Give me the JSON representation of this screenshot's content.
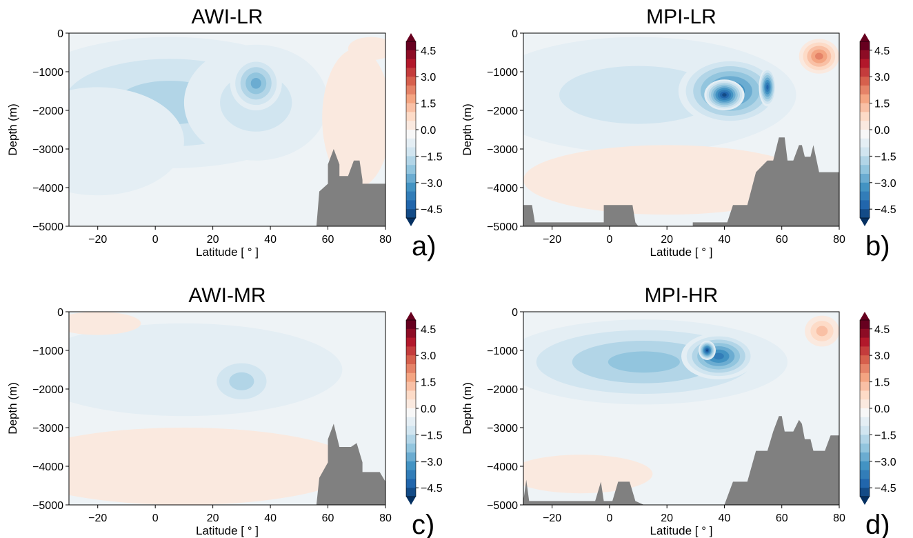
{
  "chart_data": [
    {
      "type": "heatmap",
      "title": "AWI-LR",
      "panel_label": "a)",
      "xlabel": "Latitude [ ° ]",
      "ylabel": "Depth (m)",
      "xlim": [
        -30,
        80
      ],
      "ylim": [
        -5000,
        0
      ],
      "xticks": [
        "−20",
        "0",
        "20",
        "40",
        "60",
        "80"
      ],
      "yticks": [
        "0",
        "−1000",
        "−2000",
        "−3000",
        "−4000",
        "−5000"
      ],
      "colorbar": {
        "ticks": [
          "4.5",
          "3.0",
          "1.5",
          "0.0",
          "−1.5",
          "−3.0",
          "−4.5"
        ],
        "range": [
          -5,
          5
        ],
        "cmap": "RdBu_r"
      },
      "anomalies": [
        {
          "lat": 40,
          "depth": 0,
          "val": 0,
          "rx": 0,
          "rd": 0
        }
      ],
      "field": [
        {
          "lat": 5,
          "depth": -1800,
          "val": -1.6,
          "rx": 55,
          "rd": 1700
        },
        {
          "lat": 35,
          "depth": -1800,
          "val": -1.2,
          "rx": 25,
          "rd": 1500
        },
        {
          "lat": 35,
          "depth": -1300,
          "val": -2.6,
          "rx": 9,
          "rd": 700
        },
        {
          "lat": -20,
          "depth": -2800,
          "val": -0.6,
          "rx": 30,
          "rd": 1400
        },
        {
          "lat": 75,
          "depth": -400,
          "val": 0.5,
          "rx": 8,
          "rd": 300
        },
        {
          "lat": 70,
          "depth": -2200,
          "val": 0.2,
          "rx": 12,
          "rd": 1800
        }
      ],
      "bathymetry": [
        [
          56,
          -5000
        ],
        [
          57,
          -4100
        ],
        [
          60,
          -3900
        ],
        [
          60,
          -3400
        ],
        [
          62,
          -3000
        ],
        [
          64,
          -3400
        ],
        [
          64,
          -3700
        ],
        [
          67,
          -3700
        ],
        [
          69,
          -3300
        ],
        [
          71,
          -3300
        ],
        [
          72,
          -3800
        ],
        [
          72,
          -3900
        ],
        [
          80,
          -3900
        ],
        [
          80,
          -5000
        ]
      ]
    },
    {
      "type": "heatmap",
      "title": "MPI-LR",
      "panel_label": "b)",
      "xlabel": "Latitude [ ° ]",
      "ylabel": "Depth (m)",
      "xlim": [
        -30,
        80
      ],
      "ylim": [
        -5000,
        0
      ],
      "xticks": [
        "−20",
        "0",
        "20",
        "40",
        "60",
        "80"
      ],
      "yticks": [
        "0",
        "−1000",
        "−2000",
        "−3000",
        "−4000",
        "−5000"
      ],
      "colorbar": {
        "ticks": [
          "4.5",
          "3.0",
          "1.5",
          "0.0",
          "−1.5",
          "−3.0",
          "−4.5"
        ],
        "range": [
          -5,
          5
        ],
        "cmap": "RdBu_r"
      },
      "field": [
        {
          "lat": 10,
          "depth": -1600,
          "val": -1.2,
          "rx": 55,
          "rd": 1500
        },
        {
          "lat": 42,
          "depth": -1500,
          "val": -3.3,
          "rx": 18,
          "rd": 900
        },
        {
          "lat": 40,
          "depth": -1600,
          "val": -4.6,
          "rx": 7,
          "rd": 400
        },
        {
          "lat": 55,
          "depth": -1400,
          "val": -4.2,
          "rx": 3,
          "rd": 500
        },
        {
          "lat": 73,
          "depth": -600,
          "val": 2.4,
          "rx": 7,
          "rd": 450
        },
        {
          "lat": 20,
          "depth": -3800,
          "val": 0.4,
          "rx": 50,
          "rd": 900
        }
      ],
      "bathymetry": [
        [
          -30,
          -5000
        ],
        [
          -30,
          -4450
        ],
        [
          -27,
          -4450
        ],
        [
          -26,
          -4900
        ],
        [
          -2,
          -4900
        ],
        [
          -2,
          -4450
        ],
        [
          8,
          -4450
        ],
        [
          9,
          -4900
        ],
        [
          10,
          -5000
        ]
      ],
      "bathymetry2": [
        [
          29,
          -5000
        ],
        [
          29,
          -4900
        ],
        [
          41,
          -4900
        ],
        [
          43,
          -4450
        ],
        [
          48,
          -4450
        ],
        [
          51,
          -3600
        ],
        [
          55,
          -3300
        ],
        [
          57,
          -3300
        ],
        [
          59,
          -2700
        ],
        [
          61,
          -2700
        ],
        [
          62,
          -3300
        ],
        [
          64,
          -3300
        ],
        [
          66,
          -2900
        ],
        [
          67,
          -2900
        ],
        [
          68,
          -3200
        ],
        [
          70,
          -3200
        ],
        [
          71,
          -2900
        ],
        [
          73,
          -3600
        ],
        [
          80,
          -3600
        ],
        [
          80,
          -5000
        ]
      ]
    },
    {
      "type": "heatmap",
      "title": "AWI-MR",
      "panel_label": "c)",
      "xlabel": "Latitude [ ° ]",
      "ylabel": "Depth (m)",
      "xlim": [
        -30,
        80
      ],
      "ylim": [
        -5000,
        0
      ],
      "xticks": [
        "−20",
        "0",
        "20",
        "40",
        "60",
        "80"
      ],
      "yticks": [
        "0",
        "−1000",
        "−2000",
        "−3000",
        "−4000",
        "−5000"
      ],
      "colorbar": {
        "ticks": [
          "4.5",
          "3.0",
          "1.5",
          "0.0",
          "−1.5",
          "−3.0",
          "−4.5"
        ],
        "range": [
          -5,
          5
        ],
        "cmap": "RdBu_r"
      },
      "field": [
        {
          "lat": 10,
          "depth": -1500,
          "val": -0.6,
          "rx": 55,
          "rd": 1200
        },
        {
          "lat": 30,
          "depth": -1800,
          "val": -1.3,
          "rx": 13,
          "rd": 700
        },
        {
          "lat": 10,
          "depth": -4000,
          "val": 0.3,
          "rx": 60,
          "rd": 1000
        },
        {
          "lat": -20,
          "depth": -300,
          "val": 0.3,
          "rx": 15,
          "rd": 300
        }
      ],
      "bathymetry": [
        [
          56,
          -5000
        ],
        [
          57,
          -4300
        ],
        [
          60,
          -3900
        ],
        [
          60,
          -3300
        ],
        [
          62,
          -2900
        ],
        [
          64,
          -3500
        ],
        [
          68,
          -3500
        ],
        [
          70,
          -3400
        ],
        [
          72,
          -3900
        ],
        [
          72,
          -4150
        ],
        [
          78,
          -4150
        ],
        [
          80,
          -4400
        ],
        [
          80,
          -5000
        ]
      ]
    },
    {
      "type": "heatmap",
      "title": "MPI-HR",
      "panel_label": "d)",
      "xlabel": "Latitude [ ° ]",
      "ylabel": "Depth (m)",
      "xlim": [
        -30,
        80
      ],
      "ylim": [
        -5000,
        0
      ],
      "xticks": [
        "−20",
        "0",
        "20",
        "40",
        "60",
        "80"
      ],
      "yticks": [
        "0",
        "−1000",
        "−2000",
        "−3000",
        "−4000",
        "−5000"
      ],
      "colorbar": {
        "ticks": [
          "4.5",
          "3.0",
          "1.5",
          "0.0",
          "−1.5",
          "−3.0",
          "−4.5"
        ],
        "range": [
          -5,
          5
        ],
        "cmap": "RdBu_r"
      },
      "field": [
        {
          "lat": 12,
          "depth": -1300,
          "val": -1.8,
          "rx": 50,
          "rd": 1100
        },
        {
          "lat": 38,
          "depth": -1150,
          "val": -3.4,
          "rx": 13,
          "rd": 600
        },
        {
          "lat": 34,
          "depth": -1000,
          "val": -4.5,
          "rx": 3,
          "rd": 250
        },
        {
          "lat": 74,
          "depth": -500,
          "val": 1.5,
          "rx": 6,
          "rd": 400
        },
        {
          "lat": -10,
          "depth": -4200,
          "val": 0.4,
          "rx": 25,
          "rd": 500
        }
      ],
      "bathymetry": [
        [
          -30,
          -5000
        ],
        [
          -30,
          -4900
        ],
        [
          -29,
          -4350
        ],
        [
          -28,
          -4900
        ],
        [
          -5,
          -4900
        ],
        [
          -3,
          -4400
        ],
        [
          -2,
          -4900
        ],
        [
          1,
          -4900
        ],
        [
          3,
          -4400
        ],
        [
          7,
          -4400
        ],
        [
          9,
          -4900
        ],
        [
          12,
          -5000
        ]
      ],
      "bathymetry2": [
        [
          40,
          -5000
        ],
        [
          43,
          -4400
        ],
        [
          48,
          -4400
        ],
        [
          51,
          -3600
        ],
        [
          55,
          -3600
        ],
        [
          57,
          -3100
        ],
        [
          59,
          -2700
        ],
        [
          60,
          -2700
        ],
        [
          61,
          -3100
        ],
        [
          64,
          -3100
        ],
        [
          66,
          -2800
        ],
        [
          67,
          -2900
        ],
        [
          68,
          -3300
        ],
        [
          70,
          -3300
        ],
        [
          71,
          -3600
        ],
        [
          75,
          -3600
        ],
        [
          77,
          -3200
        ],
        [
          80,
          -3200
        ],
        [
          80,
          -5000
        ]
      ]
    }
  ]
}
